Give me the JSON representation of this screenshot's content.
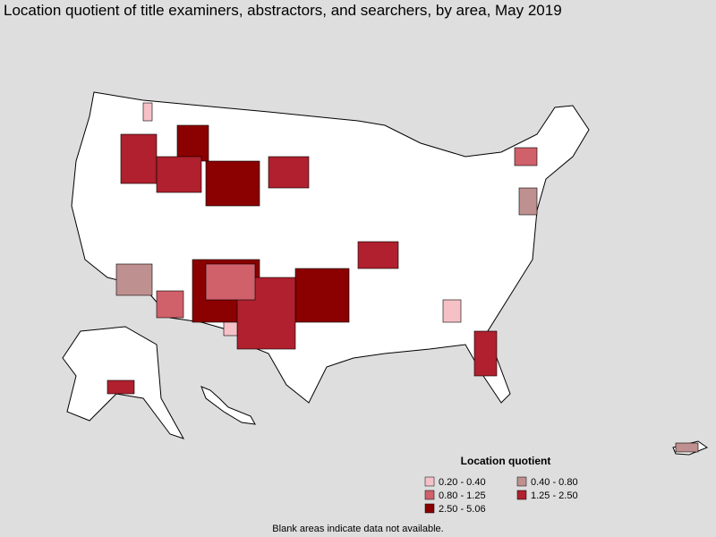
{
  "title": "Location quotient of title examiners, abstractors, and searchers, by area, May 2019",
  "legend": {
    "title": "Location quotient",
    "items": [
      {
        "label": "0.20 - 0.40",
        "color": "#f5c1c6"
      },
      {
        "label": "0.40 - 0.80",
        "color": "#bf9090"
      },
      {
        "label": "0.80 - 1.25",
        "color": "#d0606a"
      },
      {
        "label": "1.25 - 2.50",
        "color": "#b0202e"
      },
      {
        "label": "2.50 - 5.06",
        "color": "#8b0000"
      }
    ]
  },
  "footnote": "Blank areas indicate data not available."
}
